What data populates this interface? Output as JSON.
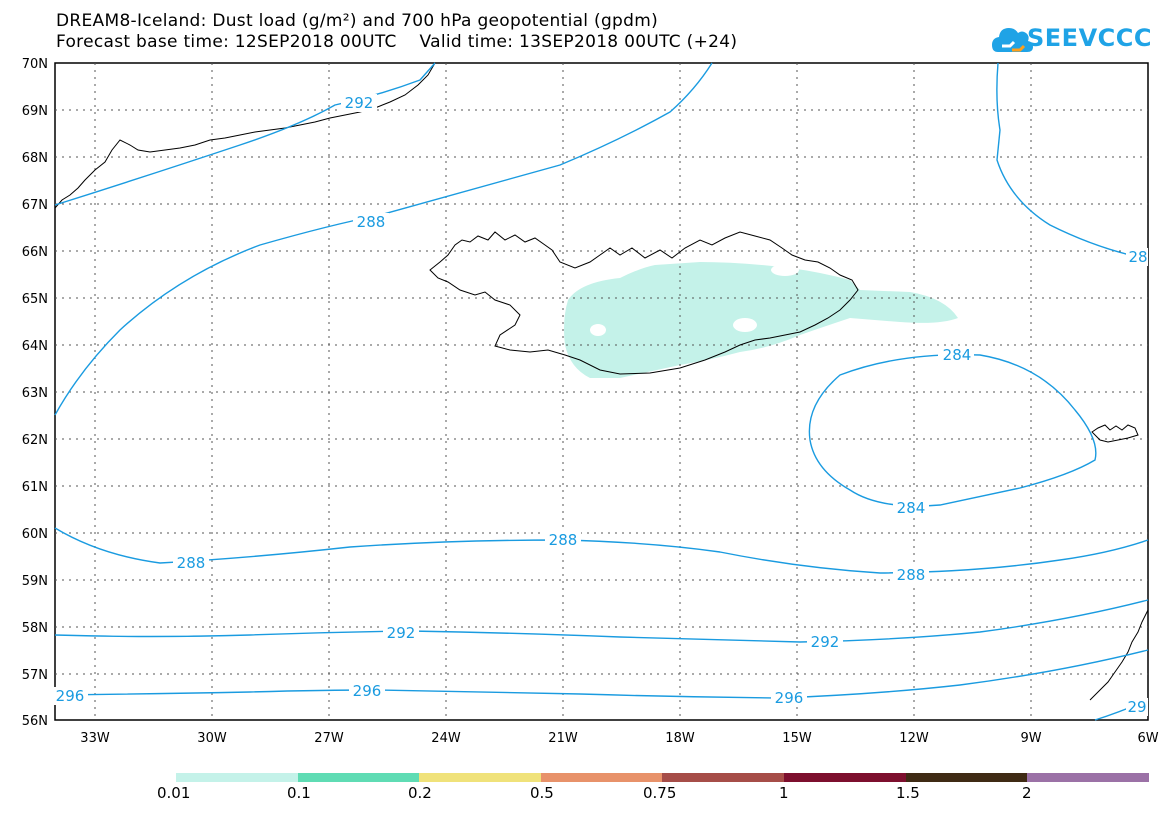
{
  "title": {
    "line1": "DREAM8-Iceland: Dust load (g/m²) and 700 hPa geopotential (gpdm)",
    "line2": "Forecast base time: 12SEP2018 00UTC    Valid time: 13SEP2018 00UTC (+24)"
  },
  "logo": {
    "text": "SEEVCCC",
    "icon": "cloud-icon",
    "color": "#1fa3e6"
  },
  "map": {
    "lat_labels": [
      "70N",
      "69N",
      "68N",
      "67N",
      "66N",
      "65N",
      "64N",
      "63N",
      "62N",
      "61N",
      "60N",
      "59N",
      "58N",
      "57N",
      "56N"
    ],
    "lon_labels": [
      "33W",
      "30W",
      "27W",
      "24W",
      "21W",
      "18W",
      "15W",
      "12W",
      "9W",
      "6W"
    ],
    "contour_color": "#1a9be0",
    "contour_labels": [
      {
        "text": "292"
      },
      {
        "text": "288"
      },
      {
        "text": "28"
      },
      {
        "text": "284"
      },
      {
        "text": "284"
      },
      {
        "text": "288"
      },
      {
        "text": "288"
      },
      {
        "text": "288"
      },
      {
        "text": "292"
      },
      {
        "text": "292"
      },
      {
        "text": "296"
      },
      {
        "text": "296"
      },
      {
        "text": "296"
      },
      {
        "text": "29"
      }
    ]
  },
  "colorbar": {
    "labels": [
      "0.01",
      "0.1",
      "0.2",
      "0.5",
      "0.75",
      "1",
      "1.5",
      "2"
    ],
    "colors": [
      "#c4f2e9",
      "#5fdcb4",
      "#f0e27a",
      "#e8926a",
      "#a64d48",
      "#7d0f2e",
      "#3f2a14",
      "#9b71a6"
    ]
  }
}
